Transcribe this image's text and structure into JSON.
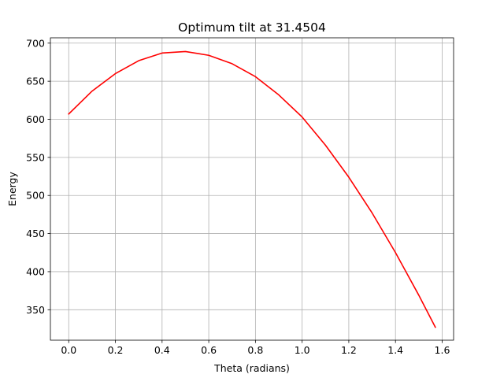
{
  "chart_data": {
    "type": "line",
    "title": "Optimum tilt at 31.4504",
    "xlabel": "Theta (radians)",
    "ylabel": "Energy",
    "xlim": [
      -0.0785,
      1.649
    ],
    "ylim": [
      310,
      707
    ],
    "xticks": [
      0.0,
      0.2,
      0.4,
      0.6,
      0.8,
      1.0,
      1.2,
      1.4,
      1.6
    ],
    "xtick_labels": [
      "0.0",
      "0.2",
      "0.4",
      "0.6",
      "0.8",
      "1.0",
      "1.2",
      "1.4",
      "1.6"
    ],
    "yticks": [
      350,
      400,
      450,
      500,
      550,
      600,
      650,
      700
    ],
    "ytick_labels": [
      "350",
      "400",
      "450",
      "500",
      "550",
      "600",
      "650",
      "700"
    ],
    "grid": true,
    "series": [
      {
        "color": "#ff0000",
        "x": [
          0.0,
          0.1,
          0.2,
          0.3,
          0.4,
          0.5,
          0.6,
          0.7,
          0.8,
          0.9,
          1.0,
          1.1,
          1.2,
          1.3,
          1.4,
          1.5,
          1.5708
        ],
        "y": [
          607,
          637,
          660,
          677,
          687,
          689,
          684,
          673,
          656,
          632,
          603,
          566,
          524,
          477,
          425,
          369,
          327
        ]
      }
    ]
  },
  "colors": {
    "line": "#ff0000",
    "grid": "#b0b0b0",
    "axes": "#000000",
    "background": "#ffffff"
  }
}
